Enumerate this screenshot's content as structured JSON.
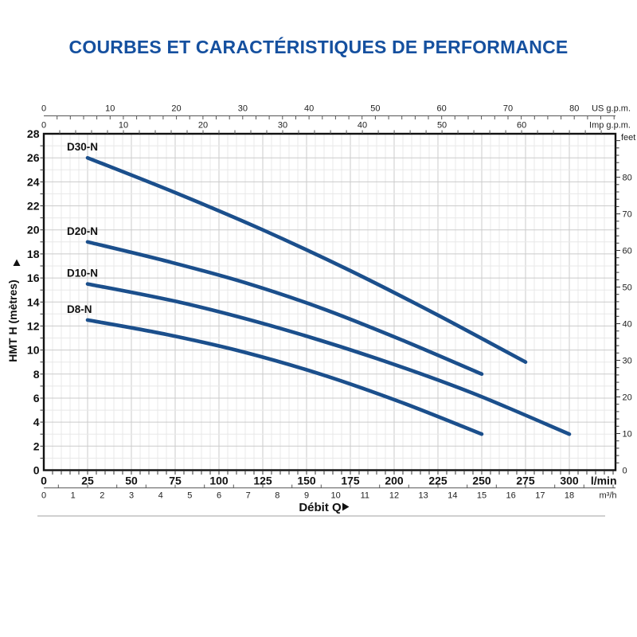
{
  "page": {
    "title": "COURBES ET CARACTÉRISTIQUES DE PERFORMANCE",
    "title_color": "#15509f"
  },
  "chart_data": {
    "type": "line",
    "title": "COURBES ET CARACTÉRISTIQUES DE PERFORMANCE",
    "xlabel": "Débit Q",
    "ylabel": "HMT H (mètres)",
    "x_axes": {
      "us_gpm": {
        "unit": "US g.p.m.",
        "tick_labels": [
          0,
          10,
          20,
          30,
          40,
          50,
          60,
          70,
          80
        ],
        "minor_step": 2
      },
      "imp_gpm": {
        "unit": "Imp g.p.m.",
        "tick_labels": [
          0,
          10,
          20,
          30,
          40,
          50,
          60
        ],
        "minor_step": 2
      },
      "lpm": {
        "unit": "l/min",
        "tick_labels": [
          0,
          25,
          50,
          75,
          100,
          125,
          150,
          175,
          200,
          225,
          250,
          275,
          300
        ],
        "minor_step": 5
      },
      "m3h": {
        "unit": "m³/h",
        "tick_labels": [
          0,
          1,
          2,
          3,
          4,
          5,
          6,
          7,
          8,
          9,
          10,
          11,
          12,
          13,
          14,
          15,
          16,
          17,
          18
        ],
        "minor_step": 0.5
      }
    },
    "y_axes": {
      "metres": {
        "unit": "HMT H (mètres)",
        "tick_labels": [
          0,
          2,
          4,
          6,
          8,
          10,
          12,
          14,
          16,
          18,
          20,
          22,
          24,
          26,
          28
        ],
        "minor_step": 1
      },
      "feet": {
        "unit": "feet",
        "tick_labels": [
          0,
          10,
          20,
          30,
          40,
          50,
          60,
          70,
          80
        ],
        "minor_step": 2
      }
    },
    "xlim_lpm": [
      0,
      326
    ],
    "ylim_m": [
      0,
      28
    ],
    "grid": "on",
    "curve_color": "#1b4f8c",
    "series": [
      {
        "name": "D30-N",
        "points_lpm_m": [
          [
            25,
            26.0
          ],
          [
            75,
            23.1
          ],
          [
            125,
            20.0
          ],
          [
            175,
            16.6
          ],
          [
            225,
            12.9
          ],
          [
            275,
            9.0
          ]
        ]
      },
      {
        "name": "D20-N",
        "points_lpm_m": [
          [
            25,
            19.0
          ],
          [
            70,
            17.4
          ],
          [
            115,
            15.6
          ],
          [
            160,
            13.4
          ],
          [
            205,
            10.8
          ],
          [
            250,
            8.0
          ]
        ]
      },
      {
        "name": "D10-N",
        "points_lpm_m": [
          [
            25,
            15.5
          ],
          [
            80,
            13.9
          ],
          [
            135,
            11.8
          ],
          [
            190,
            9.3
          ],
          [
            245,
            6.4
          ],
          [
            300,
            3.0
          ]
        ]
      },
      {
        "name": "D8-N",
        "points_lpm_m": [
          [
            25,
            12.5
          ],
          [
            70,
            11.3
          ],
          [
            115,
            9.8
          ],
          [
            160,
            7.9
          ],
          [
            205,
            5.6
          ],
          [
            250,
            3.0
          ]
        ]
      }
    ]
  }
}
